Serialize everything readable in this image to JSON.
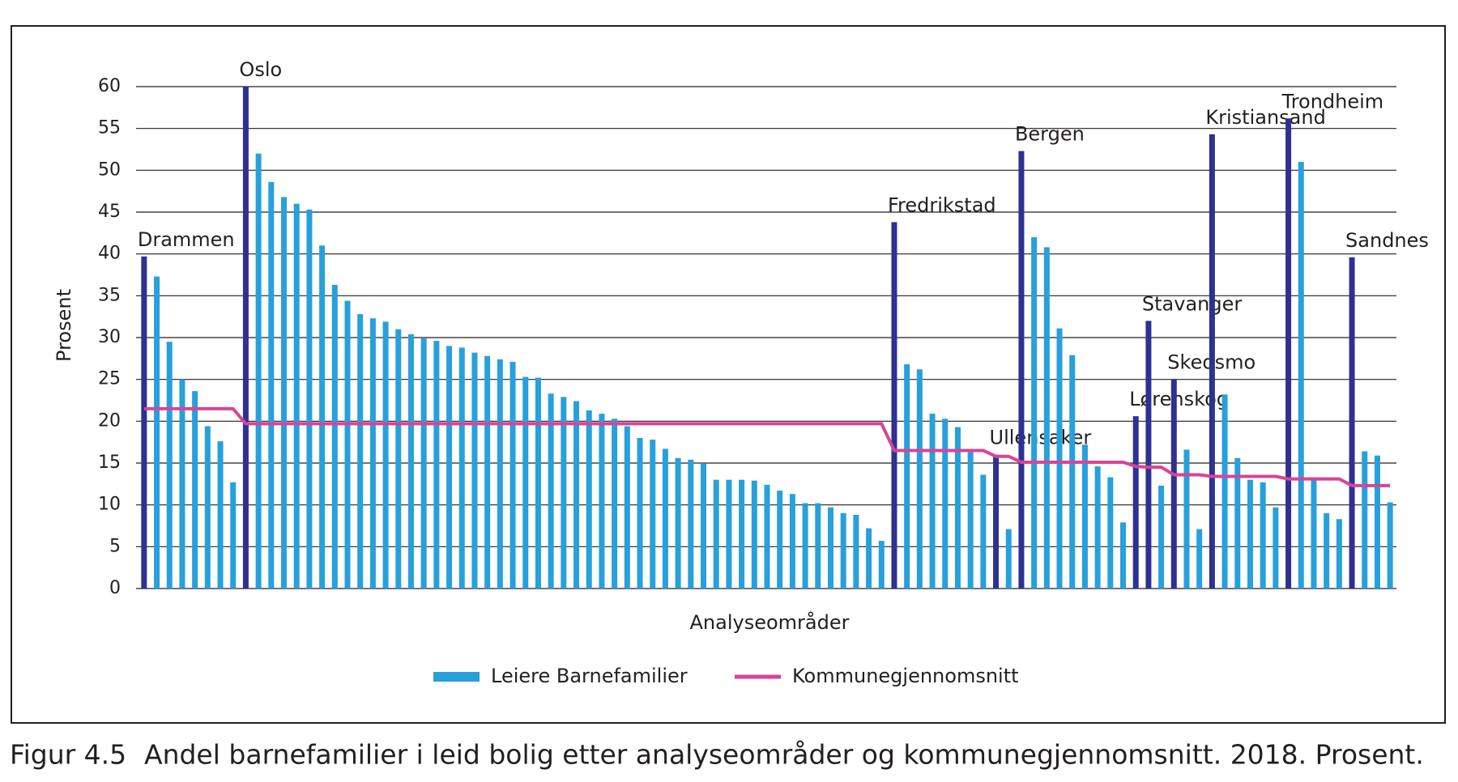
{
  "chart_data": {
    "type": "bar",
    "x_label": "Analyseområder",
    "y_label": "Prosent",
    "figure_number": "Figur 4.5",
    "caption": "Andel barnefamilier i leid bolig etter analyseområder og kommunegjennomsnitt. 2018. Prosent.",
    "ylim": [
      0,
      60
    ],
    "yticks": [
      0,
      5,
      10,
      15,
      20,
      25,
      30,
      35,
      40,
      45,
      50,
      55,
      60
    ],
    "grid": true,
    "highlight_color": "#2e3192",
    "categories": [
      "Drammen",
      null,
      null,
      null,
      null,
      null,
      null,
      null,
      "Oslo",
      null,
      null,
      null,
      null,
      null,
      null,
      null,
      null,
      null,
      null,
      null,
      null,
      null,
      null,
      null,
      null,
      null,
      null,
      null,
      null,
      null,
      null,
      null,
      null,
      null,
      null,
      null,
      null,
      null,
      null,
      null,
      null,
      null,
      null,
      null,
      null,
      null,
      null,
      null,
      null,
      null,
      null,
      null,
      null,
      null,
      null,
      null,
      null,
      null,
      null,
      "Fredrikstad",
      null,
      null,
      null,
      null,
      null,
      null,
      null,
      "Ullensaker",
      null,
      "Bergen",
      null,
      null,
      null,
      null,
      null,
      null,
      null,
      null,
      "Lørenskog",
      "Stavanger",
      null,
      "Skedsmo",
      null,
      null,
      "Kristiansand",
      null,
      null,
      null,
      null,
      null,
      "Trondheim",
      null,
      null,
      null,
      null,
      "Sandnes",
      null,
      null,
      null
    ],
    "series": [
      {
        "name": "Leiere Barnefamilier",
        "color": "#27a0db",
        "values": [
          39.7,
          37.3,
          29.5,
          25,
          23.6,
          19.4,
          17.6,
          12.7,
          60,
          52,
          48.6,
          46.8,
          46,
          45.3,
          41,
          36.3,
          34.4,
          32.8,
          32.3,
          31.9,
          31,
          30.4,
          29.9,
          29.6,
          29,
          28.8,
          28.2,
          27.8,
          27.4,
          27.1,
          25.3,
          25.2,
          23.3,
          22.9,
          22.4,
          21.3,
          20.9,
          20.3,
          19.4,
          18,
          17.8,
          16.7,
          15.6,
          15.4,
          14.9,
          13,
          13,
          13,
          12.9,
          12.4,
          11.7,
          11.3,
          10.2,
          10.2,
          9.7,
          9,
          8.8,
          7.2,
          5.7,
          43.8,
          26.8,
          26.2,
          20.9,
          20.3,
          19.3,
          16.3,
          13.6,
          16,
          7.1,
          52.3,
          42,
          40.8,
          31.1,
          27.9,
          17.2,
          14.6,
          13.3,
          7.9,
          20.6,
          32,
          12.3,
          25,
          16.6,
          7.1,
          54.3,
          23.2,
          15.6,
          13,
          12.7,
          9.7,
          56.2,
          51,
          13,
          9,
          8.3,
          39.6,
          16.4,
          15.9,
          10.3
        ]
      },
      {
        "name": "Kommunegjennomsnitt",
        "type": "line",
        "color": "#d6449a",
        "values": [
          21.5,
          21.5,
          21.5,
          21.5,
          21.5,
          21.5,
          21.5,
          21.5,
          19.7,
          19.7,
          19.7,
          19.7,
          19.7,
          19.7,
          19.7,
          19.7,
          19.7,
          19.7,
          19.7,
          19.7,
          19.7,
          19.7,
          19.7,
          19.7,
          19.7,
          19.7,
          19.7,
          19.7,
          19.7,
          19.7,
          19.7,
          19.7,
          19.7,
          19.7,
          19.7,
          19.7,
          19.7,
          19.7,
          19.7,
          19.7,
          19.7,
          19.7,
          19.7,
          19.7,
          19.7,
          19.7,
          19.7,
          19.7,
          19.7,
          19.7,
          19.7,
          19.7,
          19.7,
          19.7,
          19.7,
          19.7,
          19.7,
          19.7,
          19.7,
          16.5,
          16.5,
          16.5,
          16.5,
          16.5,
          16.5,
          16.5,
          16.5,
          15.8,
          15.8,
          15.1,
          15.1,
          15.1,
          15.1,
          15.1,
          15.1,
          15.1,
          15.1,
          15.1,
          14.6,
          14.5,
          14.5,
          13.6,
          13.6,
          13.6,
          13.4,
          13.4,
          13.4,
          13.4,
          13.4,
          13.4,
          13.1,
          13.1,
          13.1,
          13.1,
          13.1,
          12.3,
          12.3,
          12.3,
          12.3
        ]
      }
    ]
  }
}
